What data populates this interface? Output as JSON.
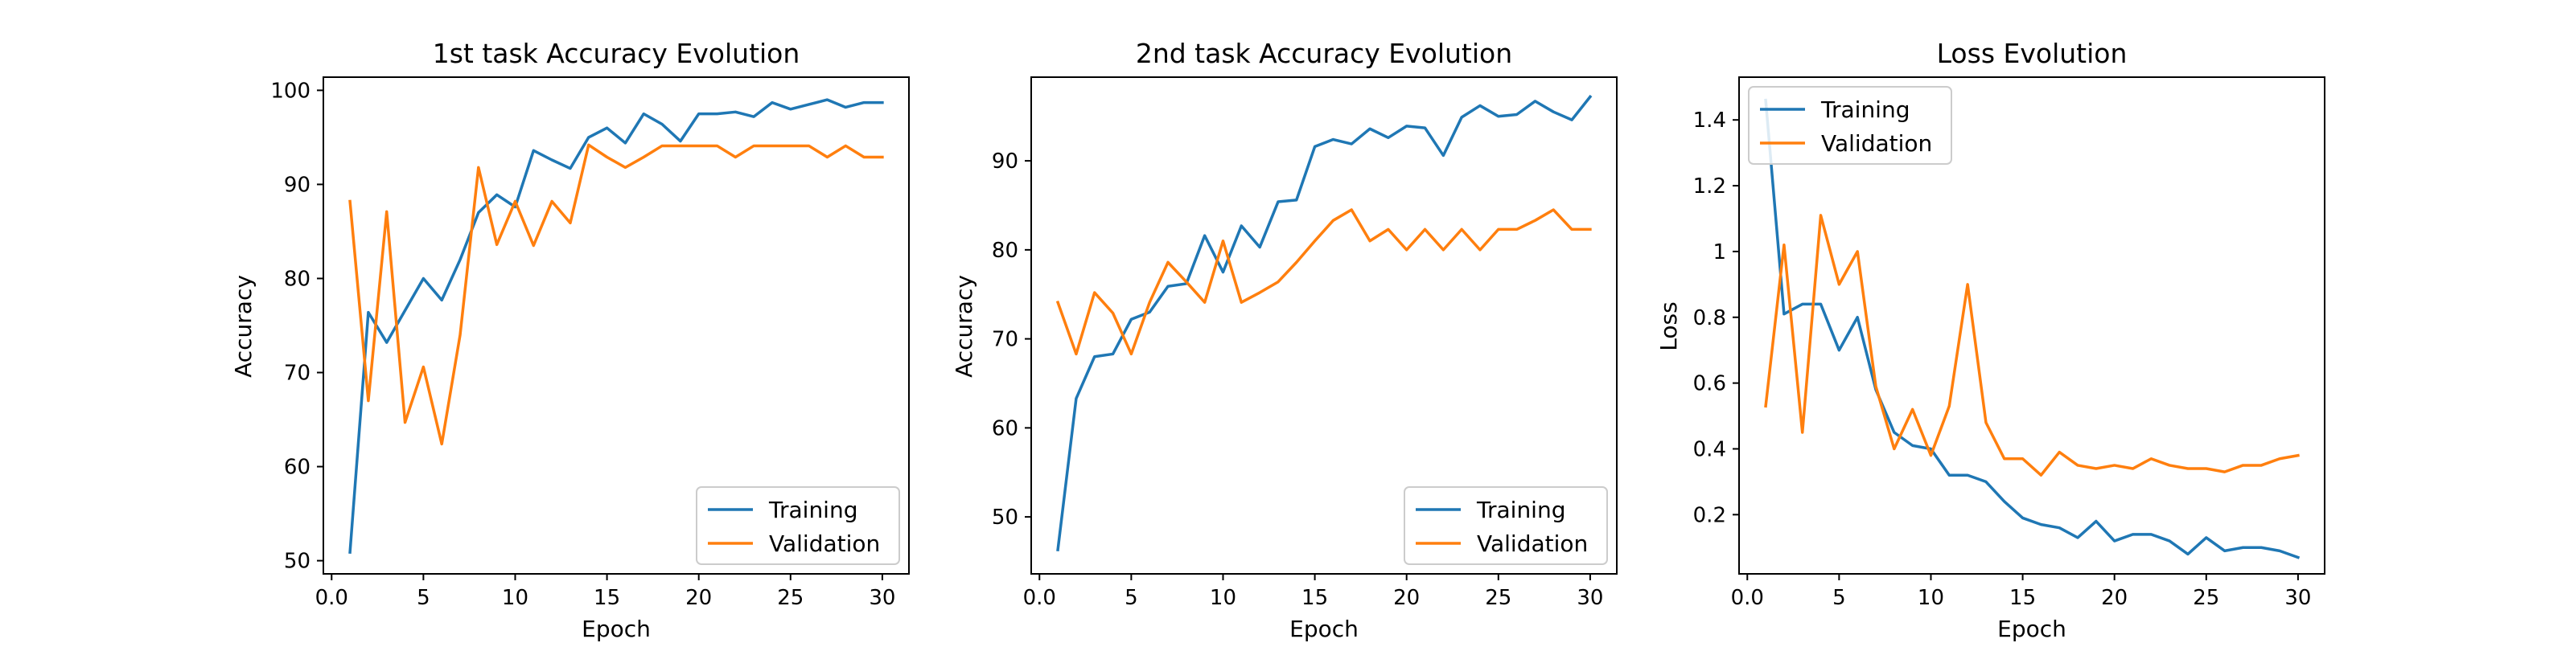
{
  "chart_data": [
    {
      "type": "line",
      "title": "1st task Accuracy Evolution",
      "xlabel": "Epoch",
      "ylabel": "Accuracy",
      "xlim": [
        -0.45,
        31.45
      ],
      "ylim": [
        48.6,
        101.4
      ],
      "xticks": [
        0,
        5,
        10,
        15,
        20,
        25,
        30
      ],
      "yticks": [
        50,
        60,
        70,
        80,
        90,
        100
      ],
      "legend_position": "lower-right",
      "grid": false,
      "x": [
        1,
        2,
        3,
        4,
        5,
        6,
        7,
        8,
        9,
        10,
        11,
        12,
        13,
        14,
        15,
        16,
        17,
        18,
        19,
        20,
        21,
        22,
        23,
        24,
        25,
        26,
        27,
        28,
        29,
        30
      ],
      "series": [
        {
          "name": "Training",
          "color": "#1f77b4",
          "values": [
            50.9,
            76.4,
            73.2,
            76.6,
            80.0,
            77.7,
            82.0,
            87.0,
            88.9,
            87.6,
            93.6,
            92.6,
            91.7,
            95.0,
            96.0,
            94.4,
            97.5,
            96.4,
            94.6,
            97.5,
            97.5,
            97.7,
            97.2,
            98.7,
            98.0,
            98.5,
            99.0,
            98.2,
            98.7,
            98.7
          ]
        },
        {
          "name": "Validation",
          "color": "#ff7f0e",
          "values": [
            88.2,
            67.0,
            87.1,
            64.7,
            70.6,
            62.4,
            74.0,
            91.8,
            83.6,
            88.2,
            83.5,
            88.2,
            85.9,
            94.2,
            92.9,
            91.8,
            92.9,
            94.1,
            94.1,
            94.1,
            94.1,
            92.9,
            94.1,
            94.1,
            94.1,
            94.1,
            92.9,
            94.1,
            92.9,
            92.9
          ]
        }
      ]
    },
    {
      "type": "line",
      "title": "2nd task Accuracy Evolution",
      "xlabel": "Epoch",
      "ylabel": "Accuracy",
      "xlim": [
        -0.45,
        31.45
      ],
      "ylim": [
        43.6,
        99.4
      ],
      "xticks": [
        0,
        5,
        10,
        15,
        20,
        25,
        30
      ],
      "yticks": [
        50,
        60,
        70,
        80,
        90
      ],
      "legend_position": "lower-right",
      "grid": false,
      "x": [
        1,
        2,
        3,
        4,
        5,
        6,
        7,
        8,
        9,
        10,
        11,
        12,
        13,
        14,
        15,
        16,
        17,
        18,
        19,
        20,
        21,
        22,
        23,
        24,
        25,
        26,
        27,
        28,
        29,
        30
      ],
      "series": [
        {
          "name": "Training",
          "color": "#1f77b4",
          "values": [
            46.3,
            63.3,
            68.0,
            68.3,
            72.2,
            73.0,
            75.9,
            76.2,
            81.6,
            77.5,
            82.7,
            80.3,
            85.4,
            85.6,
            91.6,
            92.4,
            91.9,
            93.6,
            92.6,
            93.9,
            93.7,
            90.6,
            94.9,
            96.2,
            95.0,
            95.2,
            96.7,
            95.5,
            94.6,
            97.2
          ]
        },
        {
          "name": "Validation",
          "color": "#ff7f0e",
          "values": [
            74.1,
            68.3,
            75.2,
            72.9,
            68.3,
            74.1,
            78.6,
            76.4,
            74.1,
            81.0,
            74.1,
            75.2,
            76.4,
            78.6,
            81.0,
            83.3,
            84.5,
            81.0,
            82.3,
            80.0,
            82.3,
            80.0,
            82.3,
            80.0,
            82.3,
            82.3,
            83.3,
            84.5,
            82.3,
            82.3
          ]
        }
      ]
    },
    {
      "type": "line",
      "title": "Loss Evolution",
      "xlabel": "Epoch",
      "ylabel": "Loss",
      "xlim": [
        -0.45,
        31.45
      ],
      "ylim": [
        0.02,
        1.53
      ],
      "xticks": [
        0,
        5,
        10,
        15,
        20,
        25,
        30
      ],
      "yticks": [
        0.2,
        0.4,
        0.6,
        0.8,
        1.0,
        1.2,
        1.4
      ],
      "legend_position": "upper-left",
      "grid": false,
      "x": [
        1,
        2,
        3,
        4,
        5,
        6,
        7,
        8,
        9,
        10,
        11,
        12,
        13,
        14,
        15,
        16,
        17,
        18,
        19,
        20,
        21,
        22,
        23,
        24,
        25,
        26,
        27,
        28,
        29,
        30
      ],
      "series": [
        {
          "name": "Training",
          "color": "#1f77b4",
          "values": [
            1.46,
            0.81,
            0.84,
            0.84,
            0.7,
            0.8,
            0.58,
            0.45,
            0.41,
            0.4,
            0.32,
            0.32,
            0.3,
            0.24,
            0.19,
            0.17,
            0.16,
            0.13,
            0.18,
            0.12,
            0.14,
            0.14,
            0.12,
            0.08,
            0.13,
            0.09,
            0.1,
            0.1,
            0.09,
            0.07
          ]
        },
        {
          "name": "Validation",
          "color": "#ff7f0e",
          "values": [
            0.53,
            1.02,
            0.45,
            1.11,
            0.9,
            1.0,
            0.59,
            0.4,
            0.52,
            0.38,
            0.53,
            0.9,
            0.48,
            0.37,
            0.37,
            0.32,
            0.39,
            0.35,
            0.34,
            0.35,
            0.34,
            0.37,
            0.35,
            0.34,
            0.34,
            0.33,
            0.35,
            0.35,
            0.37,
            0.38
          ]
        }
      ]
    }
  ]
}
